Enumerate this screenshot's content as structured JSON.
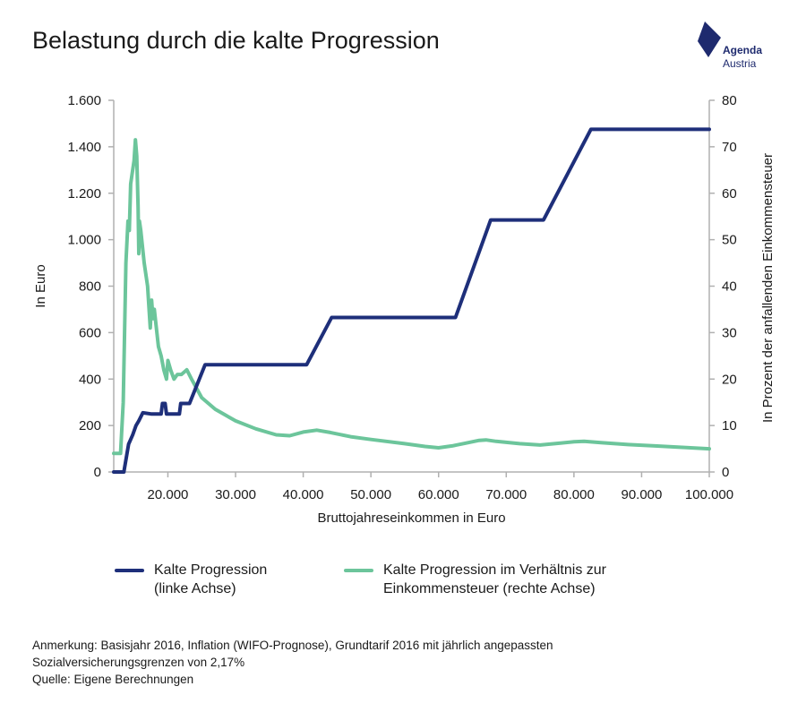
{
  "title": "Belastung durch die kalte Progression",
  "logo": {
    "line1": "Agenda",
    "line2": "Austria",
    "color": "#1e2a6e"
  },
  "chart_data": {
    "type": "line",
    "xlabel": "Bruttojahreseinkommen in Euro",
    "ylabel_left": "In Euro",
    "ylabel_right": "In Prozent der anfallenden Einkommensteuer",
    "xlim": [
      12000,
      100000
    ],
    "ylim_left": [
      0,
      1600
    ],
    "ylim_right": [
      0,
      80
    ],
    "x_ticks": [
      20000,
      30000,
      40000,
      50000,
      60000,
      70000,
      80000,
      90000,
      100000
    ],
    "x_tick_labels": [
      "20.000",
      "30.000",
      "40.000",
      "50.000",
      "60.000",
      "70.000",
      "80.000",
      "90.000",
      "100.000"
    ],
    "y_left_ticks": [
      0,
      200,
      400,
      600,
      800,
      1000,
      1200,
      1400,
      1600
    ],
    "y_left_tick_labels": [
      "0",
      "200",
      "400",
      "600",
      "800",
      "1.000",
      "1.200",
      "1.400",
      "1.600"
    ],
    "y_right_ticks": [
      0,
      10,
      20,
      30,
      40,
      50,
      60,
      70,
      80
    ],
    "y_right_tick_labels": [
      "0",
      "10",
      "20",
      "30",
      "40",
      "50",
      "60",
      "70",
      "80"
    ],
    "grid": false,
    "legend_position": "bottom",
    "series": [
      {
        "name": "Kalte Progression (linke Achse)",
        "axis": "left",
        "color": "#1e2f7a",
        "points": [
          [
            12000,
            0
          ],
          [
            13500,
            0
          ],
          [
            14200,
            120
          ],
          [
            14800,
            160
          ],
          [
            15300,
            200
          ],
          [
            15700,
            220
          ],
          [
            16300,
            255
          ],
          [
            17500,
            250
          ],
          [
            19000,
            250
          ],
          [
            19200,
            295
          ],
          [
            19600,
            295
          ],
          [
            19800,
            250
          ],
          [
            21700,
            250
          ],
          [
            21900,
            295
          ],
          [
            23200,
            295
          ],
          [
            25500,
            462
          ],
          [
            40500,
            462
          ],
          [
            44200,
            665
          ],
          [
            62500,
            665
          ],
          [
            67700,
            1085
          ],
          [
            75500,
            1085
          ],
          [
            82500,
            1475
          ],
          [
            100000,
            1475
          ]
        ]
      },
      {
        "name": "Kalte Progression im Verhältnis zur Einkommensteuer (rechte Achse)",
        "axis": "right",
        "color": "#6cc59b",
        "points": [
          [
            12000,
            4
          ],
          [
            13000,
            4
          ],
          [
            13400,
            15
          ],
          [
            13800,
            45
          ],
          [
            14100,
            54
          ],
          [
            14300,
            52
          ],
          [
            14500,
            62
          ],
          [
            14700,
            64
          ],
          [
            15000,
            67
          ],
          [
            15200,
            71.5
          ],
          [
            15400,
            68
          ],
          [
            15600,
            57
          ],
          [
            15700,
            47
          ],
          [
            15800,
            54
          ],
          [
            16000,
            52
          ],
          [
            16500,
            45
          ],
          [
            17000,
            40
          ],
          [
            17400,
            31
          ],
          [
            17600,
            37
          ],
          [
            17800,
            33
          ],
          [
            18000,
            35
          ],
          [
            18300,
            31
          ],
          [
            18600,
            27
          ],
          [
            19000,
            25
          ],
          [
            19400,
            22
          ],
          [
            19800,
            20
          ],
          [
            20000,
            24
          ],
          [
            20400,
            22
          ],
          [
            20900,
            20
          ],
          [
            21400,
            21
          ],
          [
            22000,
            21
          ],
          [
            22800,
            22
          ],
          [
            23500,
            20
          ],
          [
            25000,
            16
          ],
          [
            27000,
            13.5
          ],
          [
            30000,
            11
          ],
          [
            33000,
            9.3
          ],
          [
            36000,
            8
          ],
          [
            38000,
            7.8
          ],
          [
            40000,
            8.6
          ],
          [
            42000,
            9
          ],
          [
            44000,
            8.5
          ],
          [
            47000,
            7.6
          ],
          [
            50000,
            7
          ],
          [
            55000,
            6.1
          ],
          [
            58000,
            5.5
          ],
          [
            60000,
            5.2
          ],
          [
            62000,
            5.6
          ],
          [
            64000,
            6.2
          ],
          [
            66000,
            6.8
          ],
          [
            67000,
            6.9
          ],
          [
            68500,
            6.6
          ],
          [
            72000,
            6.1
          ],
          [
            75000,
            5.8
          ],
          [
            78000,
            6.2
          ],
          [
            80000,
            6.5
          ],
          [
            81500,
            6.6
          ],
          [
            84000,
            6.3
          ],
          [
            88000,
            5.9
          ],
          [
            92000,
            5.6
          ],
          [
            96000,
            5.3
          ],
          [
            100000,
            5
          ]
        ]
      }
    ]
  },
  "legend": [
    {
      "line1": "Kalte Progression",
      "line2": "(linke Achse)",
      "color": "#1e2f7a"
    },
    {
      "line1": "Kalte Progression im Verhältnis zur",
      "line2": "Einkommensteuer (rechte Achse)",
      "color": "#6cc59b"
    }
  ],
  "notes": [
    "Anmerkung: Basisjahr 2016, Inflation (WIFO-Prognose), Grundtarif 2016 mit jährlich angepassten",
    "Sozialversicherungsgrenzen von 2,17%",
    "Quelle: Eigene Berechnungen"
  ]
}
